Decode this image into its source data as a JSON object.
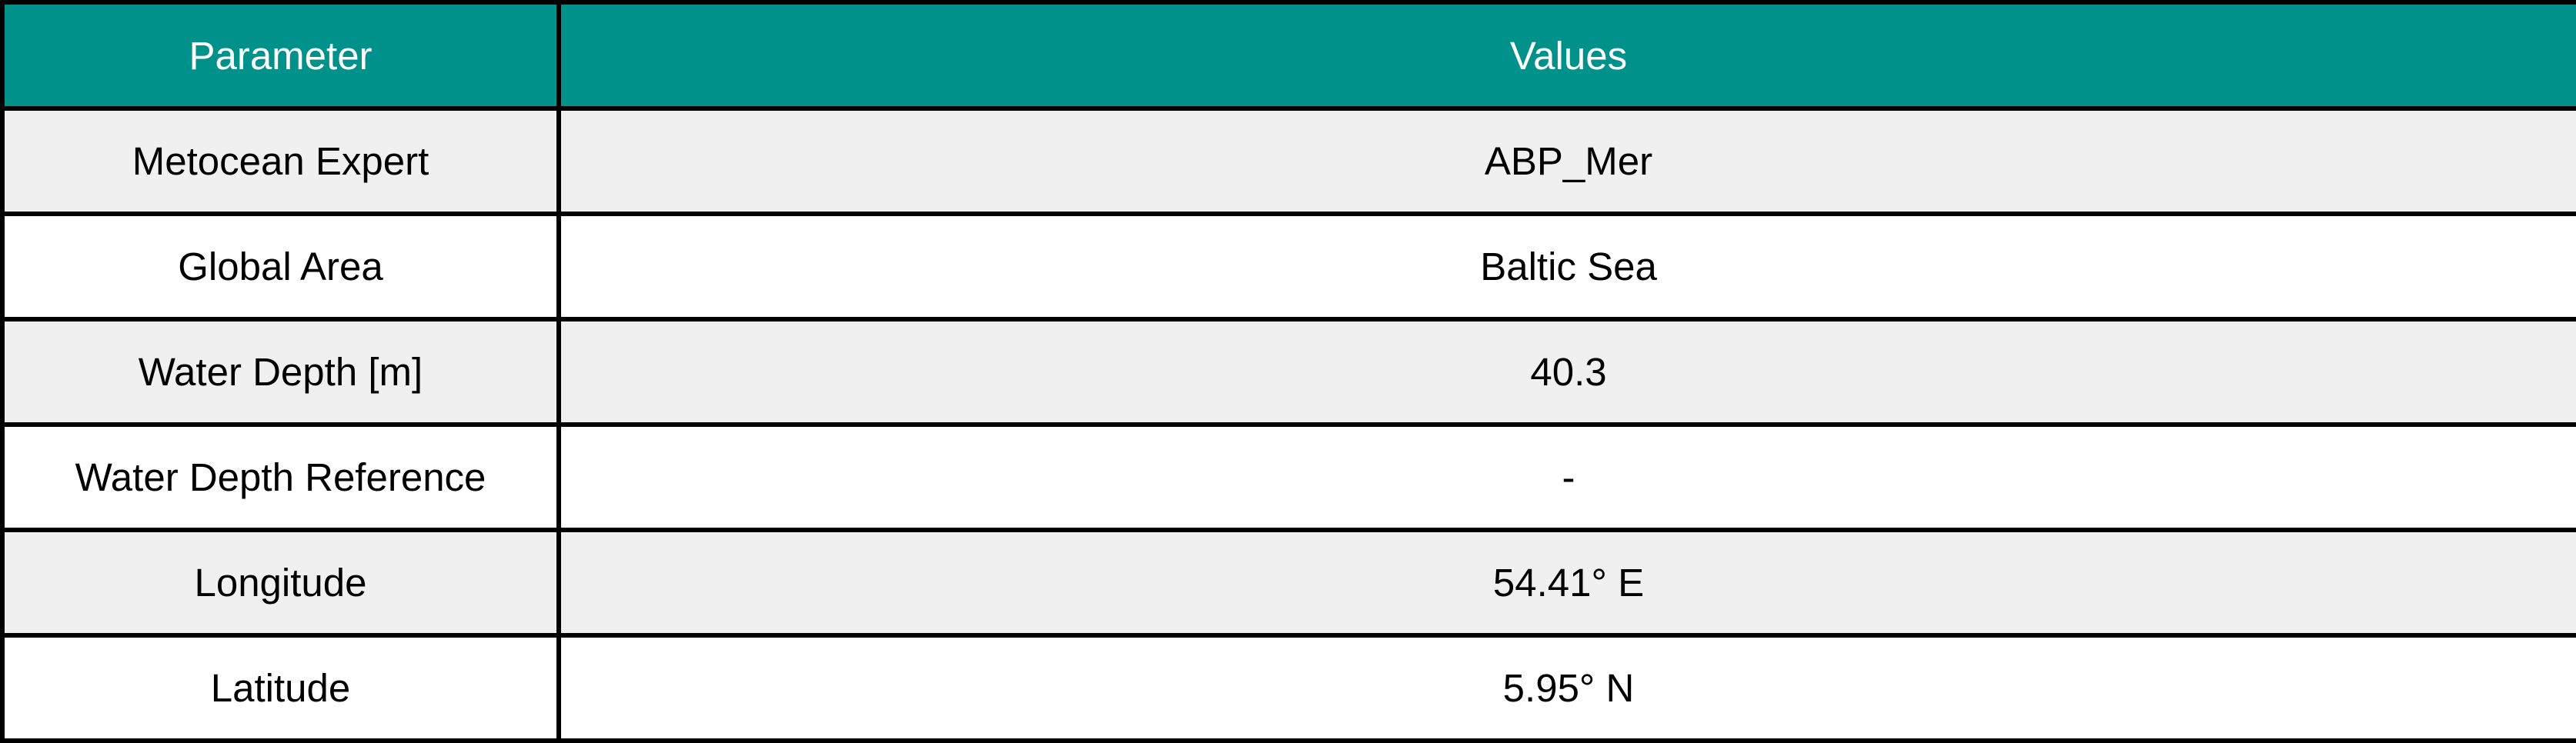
{
  "colors": {
    "header_bg": "#00928a",
    "header_text": "#ffffff",
    "row_shaded": "#f0f0f0",
    "row_plain": "#ffffff",
    "border": "#000000"
  },
  "table": {
    "headers": [
      "Parameter",
      "Values"
    ],
    "rows": [
      {
        "parameter": "Metocean Expert",
        "value": "ABP_Mer"
      },
      {
        "parameter": "Global Area",
        "value": "Baltic Sea"
      },
      {
        "parameter": "Water Depth [m]",
        "value": "40.3"
      },
      {
        "parameter": "Water Depth Reference",
        "value": "-"
      },
      {
        "parameter": "Longitude",
        "value": "54.41° E"
      },
      {
        "parameter": "Latitude",
        "value": "5.95° N"
      }
    ]
  }
}
